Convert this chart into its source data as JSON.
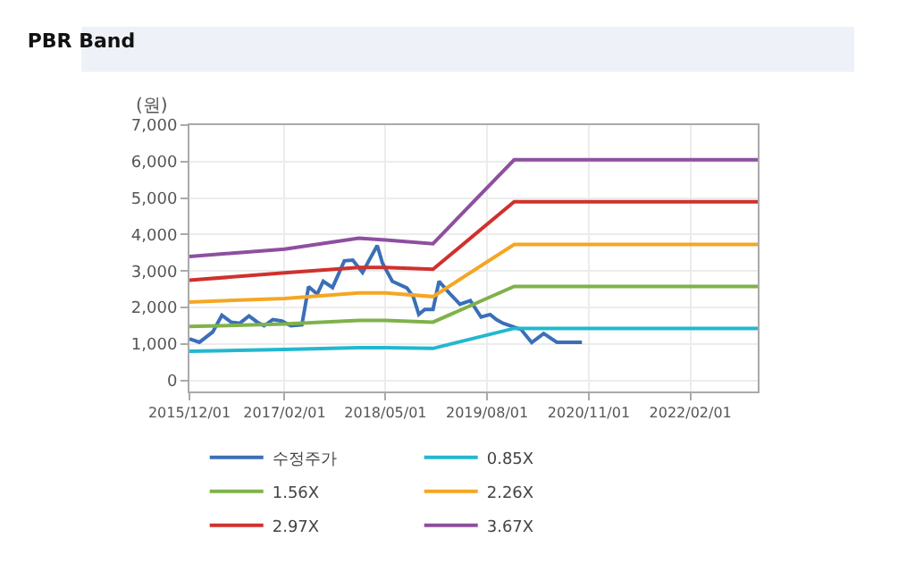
{
  "chart_data": {
    "type": "line",
    "title": "PBR Band",
    "ylabel": "(원)",
    "xlim": [
      "2015-12-01",
      "2022-12-01"
    ],
    "xticks": [
      {
        "value": "2015-12-01",
        "label": "2015/12/01"
      },
      {
        "value": "2017-02-01",
        "label": "2017/02/01"
      },
      {
        "value": "2018-05-01",
        "label": "2018/05/01"
      },
      {
        "value": "2019-08-01",
        "label": "2019/08/01"
      },
      {
        "value": "2020-11-01",
        "label": "2020/11/01"
      },
      {
        "value": "2022-02-01",
        "label": "2022/02/01"
      }
    ],
    "ylim": [
      -300,
      7000
    ],
    "yticks": [
      {
        "value": 0,
        "label": "0"
      },
      {
        "value": 1000,
        "label": "1,000"
      },
      {
        "value": 2000,
        "label": "2,000"
      },
      {
        "value": 3000,
        "label": "3,000"
      },
      {
        "value": 4000,
        "label": "4,000"
      },
      {
        "value": 5000,
        "label": "5,000"
      },
      {
        "value": 6000,
        "label": "6,000"
      },
      {
        "value": 7000,
        "label": "7,000"
      }
    ],
    "grid": true,
    "legend": "bottom",
    "marker": "none",
    "line_style": "solid",
    "series": [
      {
        "name": "수정주가",
        "color": "#3a6fb8",
        "x": [
          "2015-12-01",
          "2016-01-15",
          "2016-03-15",
          "2016-04-25",
          "2016-06-05",
          "2016-07-15",
          "2016-08-25",
          "2016-10-01",
          "2016-11-01",
          "2016-12-10",
          "2017-01-20",
          "2017-03-01",
          "2017-04-20",
          "2017-05-20",
          "2017-06-28",
          "2017-07-25",
          "2017-09-05",
          "2017-10-28",
          "2017-12-05",
          "2018-01-18",
          "2018-02-15",
          "2018-03-25",
          "2018-04-18",
          "2018-06-01",
          "2018-08-05",
          "2018-09-03",
          "2018-09-28",
          "2018-10-25",
          "2018-12-01",
          "2018-12-28",
          "2019-02-12",
          "2019-04-01",
          "2019-05-18",
          "2019-07-05",
          "2019-08-15",
          "2019-09-12",
          "2019-10-12",
          "2020-01-01",
          "2020-02-18",
          "2020-04-12",
          "2020-06-10",
          "2020-10-01"
        ],
        "values": [
          1140,
          1050,
          1330,
          1790,
          1600,
          1570,
          1770,
          1600,
          1500,
          1670,
          1630,
          1500,
          1530,
          2570,
          2370,
          2720,
          2550,
          3280,
          3300,
          2960,
          3280,
          3700,
          3210,
          2720,
          2540,
          2300,
          1810,
          1950,
          1950,
          2720,
          2400,
          2090,
          2190,
          1740,
          1810,
          1670,
          1570,
          1400,
          1040,
          1290,
          1050,
          1050
        ]
      },
      {
        "name": "0.85X",
        "color": "#22b8cf",
        "x": [
          "2015-12-01",
          "2017-02-01",
          "2018-01-01",
          "2018-05-01",
          "2018-12-01",
          "2019-12-01",
          "2022-12-01"
        ],
        "values": [
          800,
          850,
          900,
          900,
          880,
          1430,
          1430
        ]
      },
      {
        "name": "1.56X",
        "color": "#7fb24a",
        "x": [
          "2015-12-01",
          "2017-02-01",
          "2018-01-01",
          "2018-05-01",
          "2018-12-01",
          "2019-12-01",
          "2022-12-01"
        ],
        "values": [
          1480,
          1550,
          1650,
          1650,
          1600,
          2580,
          2580
        ]
      },
      {
        "name": "2.26X",
        "color": "#f5a623",
        "x": [
          "2015-12-01",
          "2017-02-01",
          "2018-01-01",
          "2018-05-01",
          "2018-12-01",
          "2019-12-01",
          "2022-12-01"
        ],
        "values": [
          2150,
          2250,
          2400,
          2400,
          2300,
          3730,
          3730
        ]
      },
      {
        "name": "2.97X",
        "color": "#d0312d",
        "x": [
          "2015-12-01",
          "2017-02-01",
          "2018-01-01",
          "2018-05-01",
          "2018-12-01",
          "2019-12-01",
          "2022-12-01"
        ],
        "values": [
          2750,
          2950,
          3100,
          3100,
          3050,
          4900,
          4900
        ]
      },
      {
        "name": "3.67X",
        "color": "#8e4fa0",
        "x": [
          "2015-12-01",
          "2017-02-01",
          "2018-01-01",
          "2018-05-01",
          "2018-12-01",
          "2019-12-01",
          "2022-12-01"
        ],
        "values": [
          3400,
          3600,
          3900,
          3850,
          3750,
          6050,
          6050
        ]
      }
    ]
  }
}
